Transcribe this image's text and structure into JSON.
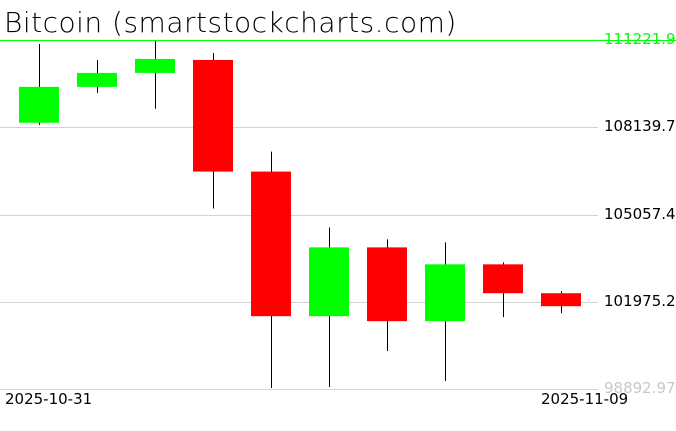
{
  "chart_data": {
    "type": "candlestick",
    "title": "Bitcoin (smartstockcharts.com)",
    "xlabel": "",
    "ylabel": "",
    "x_tick_labels": [
      "2025-10-31",
      "2025-11-09"
    ],
    "y_tick_labels": [
      "111221.9",
      "108139.7",
      "105057.4",
      "101975.2",
      "98892.97"
    ],
    "ylim": [
      98892.97,
      111221.9
    ],
    "grid": true,
    "colors": {
      "up": "#00ff00",
      "down": "#ff0000",
      "wick": "#000000",
      "grid": "#d3d3d3",
      "max_line": "#00ff00",
      "min_label": "#c8c8c8"
    },
    "candles": [
      {
        "open": 108298,
        "high": 111081,
        "low": 108228,
        "close": 109567
      },
      {
        "open": 109567,
        "high": 110518,
        "low": 109355,
        "close": 110060
      },
      {
        "open": 110060,
        "high": 111187,
        "low": 108792,
        "close": 110553
      },
      {
        "open": 110518,
        "high": 110764,
        "low": 105270,
        "close": 106573
      },
      {
        "open": 106573,
        "high": 107277,
        "low": 98930,
        "close": 101466
      },
      {
        "open": 101466,
        "high": 104600,
        "low": 98965,
        "close": 103896
      },
      {
        "open": 103896,
        "high": 104178,
        "low": 100233,
        "close": 101290
      },
      {
        "open": 101290,
        "high": 104072,
        "low": 99177,
        "close": 103297
      },
      {
        "open": 103297,
        "high": 103368,
        "low": 101430,
        "close": 102276
      },
      {
        "open": 102276,
        "high": 102346,
        "low": 101571,
        "close": 101818
      }
    ]
  }
}
